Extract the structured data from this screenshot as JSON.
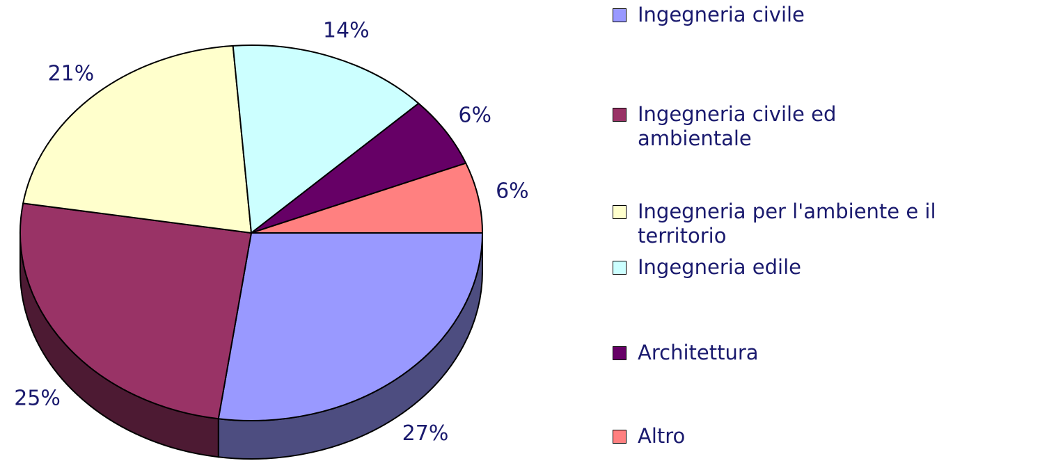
{
  "chart_data": {
    "type": "pie",
    "categories": [
      "Ingegneria civile",
      "Ingegneria civile ed ambientale",
      "Ingegneria per l'ambiente e il territorio",
      "Ingegneria edile",
      "Architettura",
      "Altro"
    ],
    "values": [
      27,
      25,
      21,
      14,
      6,
      6
    ],
    "value_labels": [
      "27%",
      "25%",
      "21%",
      "14%",
      "6%",
      "6%"
    ],
    "colors": [
      "#9999ff",
      "#993366",
      "#ffffcc",
      "#ccffff",
      "#660066",
      "#ff8080"
    ],
    "legend": "right"
  }
}
